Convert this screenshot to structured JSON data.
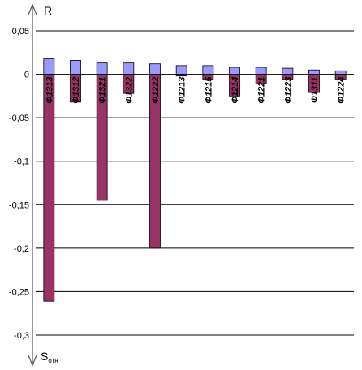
{
  "chart_data": {
    "type": "bar",
    "categories": [
      "Ф1313",
      "Ф1312",
      "Ф1321",
      "Ф1322",
      "Ф1222",
      "Ф1213",
      "Ф1215",
      "Ф1214",
      "Ф1221",
      "Ф1223",
      "Ф1311",
      "Ф1224"
    ],
    "series": [
      {
        "values": [
          0.018,
          0.016,
          0.013,
          0.013,
          0.012,
          0.01,
          0.01,
          0.008,
          0.008,
          0.007,
          0.005,
          0.004
        ]
      },
      {
        "values": [
          -0.261,
          -0.032,
          -0.145,
          -0.022,
          -0.2,
          -0.002,
          -0.006,
          -0.025,
          -0.011,
          -0.006,
          -0.021,
          -0.006
        ]
      }
    ],
    "ylim": [
      -0.3,
      0.05
    ],
    "yticks": [
      0.05,
      0,
      -0.05,
      -0.1,
      -0.15,
      -0.2,
      -0.25,
      -0.3
    ],
    "ytick_labels": [
      "0,05",
      "0",
      "-0,05",
      "-0,1",
      "-0,15",
      "-0,2",
      "-0,25",
      "-0,3"
    ],
    "grid": true,
    "colors": {
      "positive": "#9999ff",
      "negative": "#993366",
      "grid": "#000000"
    },
    "axis_top_label": "R",
    "axis_bottom_label": {
      "main": "S",
      "subscript": "отн"
    }
  }
}
